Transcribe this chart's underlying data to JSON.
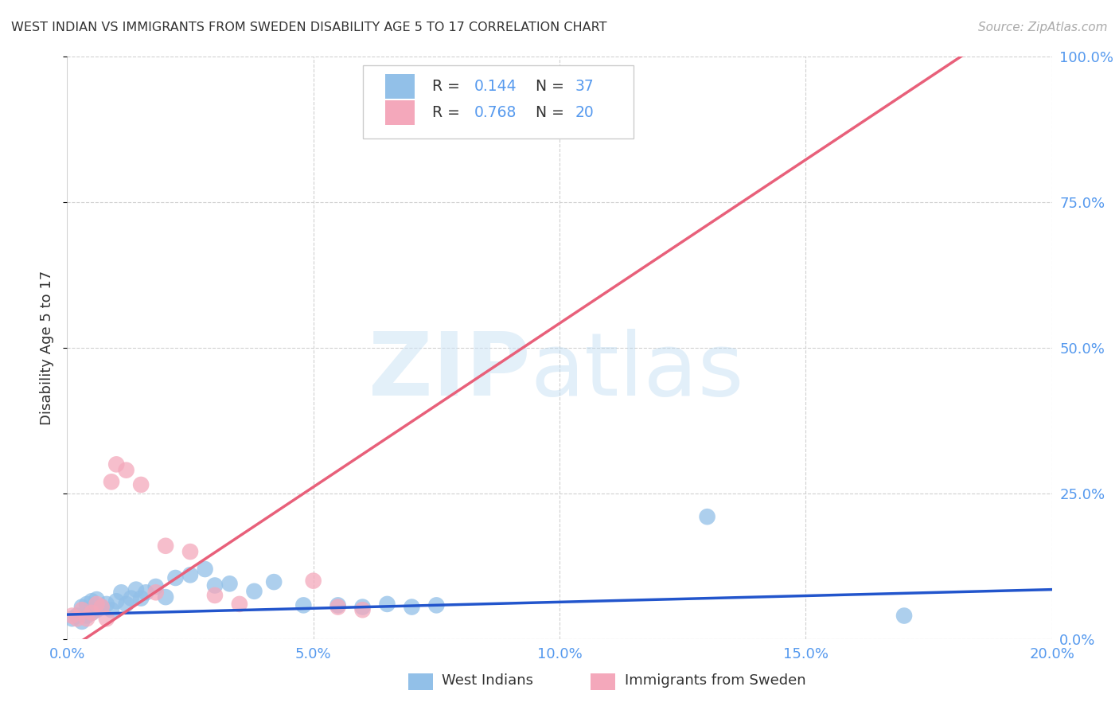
{
  "title": "WEST INDIAN VS IMMIGRANTS FROM SWEDEN DISABILITY AGE 5 TO 17 CORRELATION CHART",
  "source": "Source: ZipAtlas.com",
  "xlabel_vals": [
    0.0,
    0.05,
    0.1,
    0.15,
    0.2
  ],
  "xlabel_labels": [
    "0.0%",
    "5.0%",
    "10.0%",
    "15.0%",
    "20.0%"
  ],
  "ylabel": "Disability Age 5 to 17",
  "ylabel_vals": [
    0.0,
    0.25,
    0.5,
    0.75,
    1.0
  ],
  "ylabel_labels": [
    "0.0%",
    "25.0%",
    "50.0%",
    "75.0%",
    "100.0%"
  ],
  "xlim": [
    0.0,
    0.2
  ],
  "ylim": [
    0.0,
    1.0
  ],
  "r1": "0.144",
  "n1": "37",
  "r2": "0.768",
  "n2": "20",
  "color_blue": "#92C0E8",
  "color_pink": "#F4A8BB",
  "trend_blue": "#2255CC",
  "trend_pink": "#E8607A",
  "background": "#ffffff",
  "grid_color": "#d0d0d0",
  "title_color": "#333333",
  "source_color": "#aaaaaa",
  "tick_color": "#5599EE",
  "label_color": "#333333",
  "blue_scatter_x": [
    0.001,
    0.002,
    0.003,
    0.003,
    0.004,
    0.004,
    0.005,
    0.005,
    0.006,
    0.006,
    0.007,
    0.008,
    0.009,
    0.01,
    0.011,
    0.012,
    0.013,
    0.014,
    0.015,
    0.016,
    0.018,
    0.02,
    0.022,
    0.025,
    0.028,
    0.03,
    0.033,
    0.038,
    0.042,
    0.048,
    0.055,
    0.06,
    0.065,
    0.07,
    0.075,
    0.13,
    0.17
  ],
  "blue_scatter_y": [
    0.035,
    0.04,
    0.03,
    0.055,
    0.04,
    0.06,
    0.045,
    0.065,
    0.05,
    0.068,
    0.055,
    0.06,
    0.05,
    0.065,
    0.08,
    0.06,
    0.07,
    0.085,
    0.07,
    0.08,
    0.09,
    0.072,
    0.105,
    0.11,
    0.12,
    0.092,
    0.095,
    0.082,
    0.098,
    0.058,
    0.058,
    0.055,
    0.06,
    0.055,
    0.058,
    0.21,
    0.04
  ],
  "pink_scatter_x": [
    0.001,
    0.002,
    0.003,
    0.004,
    0.005,
    0.006,
    0.007,
    0.008,
    0.009,
    0.01,
    0.012,
    0.015,
    0.018,
    0.02,
    0.025,
    0.03,
    0.035,
    0.05,
    0.06,
    0.055
  ],
  "pink_scatter_y": [
    0.04,
    0.035,
    0.05,
    0.035,
    0.045,
    0.06,
    0.055,
    0.035,
    0.27,
    0.3,
    0.29,
    0.265,
    0.08,
    0.16,
    0.15,
    0.075,
    0.06,
    0.1,
    0.05,
    0.055
  ],
  "blue_trend_x": [
    0.0,
    0.2
  ],
  "blue_trend_y": [
    0.042,
    0.085
  ],
  "pink_trend_x": [
    0.0,
    0.185
  ],
  "pink_trend_y": [
    -0.02,
    1.02
  ]
}
